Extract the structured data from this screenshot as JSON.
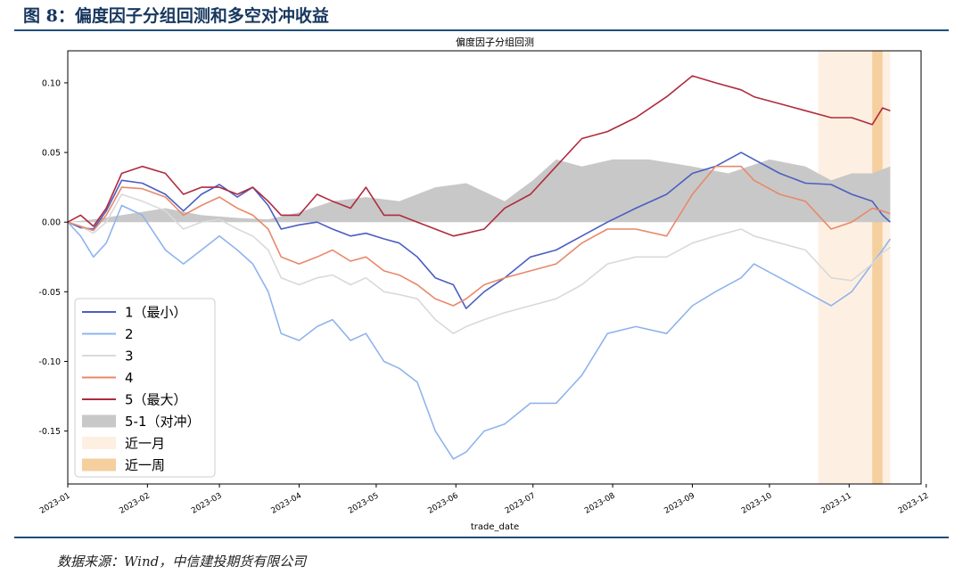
{
  "figure": {
    "title": "图 8：偏度因子分组回测和多空对冲收益",
    "source": "数据来源：Wind，中信建投期货有限公司"
  },
  "chart_data": {
    "type": "line",
    "title": "偏度因子分组回测",
    "xlabel": "trade_date",
    "ylabel": "",
    "ylim": [
      -0.188,
      0.123
    ],
    "xlim": [
      "2023-01-01",
      "2023-11-29"
    ],
    "grid": false,
    "legend_position": "bottom-left",
    "x_ticks": [
      "2023-01",
      "2023-02",
      "2023-03",
      "2023-04",
      "2023-05",
      "2023-06",
      "2023-07",
      "2023-08",
      "2023-09",
      "2023-10",
      "2023-11",
      "2023-12"
    ],
    "y_ticks": [
      0.1,
      0.05,
      0.0,
      -0.05,
      -0.1,
      -0.15
    ],
    "highlights": [
      {
        "name": "近一月",
        "start": "2023-10-20",
        "end": "2023-11-17",
        "color": "#fdf0e2"
      },
      {
        "name": "近一周",
        "start": "2023-11-10",
        "end": "2023-11-14",
        "color": "#f6cf9f"
      }
    ],
    "series": [
      {
        "name": "1（最小）",
        "color": "#4a5fc1",
        "kind": "line",
        "points": [
          [
            "2023-01-01",
            0.0
          ],
          [
            "2023-01-06",
            -0.004
          ],
          [
            "2023-01-11",
            -0.005
          ],
          [
            "2023-01-16",
            0.008
          ],
          [
            "2023-01-22",
            0.03
          ],
          [
            "2023-01-30",
            0.028
          ],
          [
            "2023-02-08",
            0.02
          ],
          [
            "2023-02-15",
            0.008
          ],
          [
            "2023-02-22",
            0.02
          ],
          [
            "2023-03-01",
            0.027
          ],
          [
            "2023-03-08",
            0.018
          ],
          [
            "2023-03-14",
            0.025
          ],
          [
            "2023-03-20",
            0.012
          ],
          [
            "2023-03-25",
            -0.005
          ],
          [
            "2023-04-01",
            -0.002
          ],
          [
            "2023-04-08",
            0.0
          ],
          [
            "2023-04-14",
            -0.005
          ],
          [
            "2023-04-21",
            -0.01
          ],
          [
            "2023-04-27",
            -0.008
          ],
          [
            "2023-05-04",
            -0.012
          ],
          [
            "2023-05-10",
            -0.015
          ],
          [
            "2023-05-17",
            -0.025
          ],
          [
            "2023-05-24",
            -0.04
          ],
          [
            "2023-05-31",
            -0.045
          ],
          [
            "2023-06-05",
            -0.062
          ],
          [
            "2023-06-12",
            -0.05
          ],
          [
            "2023-06-20",
            -0.04
          ],
          [
            "2023-06-30",
            -0.025
          ],
          [
            "2023-07-10",
            -0.02
          ],
          [
            "2023-07-20",
            -0.01
          ],
          [
            "2023-07-30",
            0.0
          ],
          [
            "2023-08-10",
            0.01
          ],
          [
            "2023-08-22",
            0.02
          ],
          [
            "2023-09-01",
            0.035
          ],
          [
            "2023-09-10",
            0.04
          ],
          [
            "2023-09-20",
            0.05
          ],
          [
            "2023-09-25",
            0.045
          ],
          [
            "2023-10-05",
            0.035
          ],
          [
            "2023-10-15",
            0.028
          ],
          [
            "2023-10-25",
            0.027
          ],
          [
            "2023-11-02",
            0.02
          ],
          [
            "2023-11-10",
            0.015
          ],
          [
            "2023-11-14",
            0.005
          ],
          [
            "2023-11-17",
            0.0
          ]
        ]
      },
      {
        "name": "2",
        "color": "#8fb4ec",
        "kind": "line",
        "points": [
          [
            "2023-01-01",
            0.0
          ],
          [
            "2023-01-06",
            -0.01
          ],
          [
            "2023-01-11",
            -0.025
          ],
          [
            "2023-01-16",
            -0.015
          ],
          [
            "2023-01-22",
            0.012
          ],
          [
            "2023-01-30",
            0.005
          ],
          [
            "2023-02-08",
            -0.02
          ],
          [
            "2023-02-15",
            -0.03
          ],
          [
            "2023-02-22",
            -0.02
          ],
          [
            "2023-03-01",
            -0.01
          ],
          [
            "2023-03-08",
            -0.02
          ],
          [
            "2023-03-14",
            -0.03
          ],
          [
            "2023-03-20",
            -0.05
          ],
          [
            "2023-03-25",
            -0.08
          ],
          [
            "2023-04-01",
            -0.085
          ],
          [
            "2023-04-08",
            -0.075
          ],
          [
            "2023-04-14",
            -0.07
          ],
          [
            "2023-04-21",
            -0.085
          ],
          [
            "2023-04-27",
            -0.08
          ],
          [
            "2023-05-04",
            -0.1
          ],
          [
            "2023-05-10",
            -0.105
          ],
          [
            "2023-05-17",
            -0.115
          ],
          [
            "2023-05-24",
            -0.15
          ],
          [
            "2023-05-31",
            -0.17
          ],
          [
            "2023-06-05",
            -0.165
          ],
          [
            "2023-06-12",
            -0.15
          ],
          [
            "2023-06-20",
            -0.145
          ],
          [
            "2023-06-30",
            -0.13
          ],
          [
            "2023-07-10",
            -0.13
          ],
          [
            "2023-07-20",
            -0.11
          ],
          [
            "2023-07-30",
            -0.08
          ],
          [
            "2023-08-10",
            -0.075
          ],
          [
            "2023-08-22",
            -0.08
          ],
          [
            "2023-09-01",
            -0.06
          ],
          [
            "2023-09-10",
            -0.05
          ],
          [
            "2023-09-20",
            -0.04
          ],
          [
            "2023-09-25",
            -0.03
          ],
          [
            "2023-10-05",
            -0.04
          ],
          [
            "2023-10-15",
            -0.05
          ],
          [
            "2023-10-25",
            -0.06
          ],
          [
            "2023-11-02",
            -0.05
          ],
          [
            "2023-11-10",
            -0.03
          ],
          [
            "2023-11-14",
            -0.02
          ],
          [
            "2023-11-17",
            -0.012
          ]
        ]
      },
      {
        "name": "3",
        "color": "#d9d9d9",
        "kind": "line",
        "points": [
          [
            "2023-01-01",
            0.0
          ],
          [
            "2023-01-06",
            -0.003
          ],
          [
            "2023-01-11",
            -0.008
          ],
          [
            "2023-01-16",
            0.0
          ],
          [
            "2023-01-22",
            0.02
          ],
          [
            "2023-01-30",
            0.015
          ],
          [
            "2023-02-08",
            0.008
          ],
          [
            "2023-02-15",
            -0.005
          ],
          [
            "2023-02-22",
            0.0
          ],
          [
            "2023-03-01",
            0.002
          ],
          [
            "2023-03-08",
            -0.005
          ],
          [
            "2023-03-14",
            -0.01
          ],
          [
            "2023-03-20",
            -0.02
          ],
          [
            "2023-03-25",
            -0.04
          ],
          [
            "2023-04-01",
            -0.045
          ],
          [
            "2023-04-08",
            -0.04
          ],
          [
            "2023-04-14",
            -0.038
          ],
          [
            "2023-04-21",
            -0.045
          ],
          [
            "2023-04-27",
            -0.04
          ],
          [
            "2023-05-04",
            -0.05
          ],
          [
            "2023-05-10",
            -0.052
          ],
          [
            "2023-05-17",
            -0.055
          ],
          [
            "2023-05-24",
            -0.07
          ],
          [
            "2023-05-31",
            -0.08
          ],
          [
            "2023-06-05",
            -0.075
          ],
          [
            "2023-06-12",
            -0.07
          ],
          [
            "2023-06-20",
            -0.065
          ],
          [
            "2023-06-30",
            -0.06
          ],
          [
            "2023-07-10",
            -0.055
          ],
          [
            "2023-07-20",
            -0.045
          ],
          [
            "2023-07-30",
            -0.03
          ],
          [
            "2023-08-10",
            -0.025
          ],
          [
            "2023-08-22",
            -0.025
          ],
          [
            "2023-09-01",
            -0.015
          ],
          [
            "2023-09-10",
            -0.01
          ],
          [
            "2023-09-20",
            -0.005
          ],
          [
            "2023-09-25",
            -0.01
          ],
          [
            "2023-10-05",
            -0.015
          ],
          [
            "2023-10-15",
            -0.02
          ],
          [
            "2023-10-25",
            -0.04
          ],
          [
            "2023-11-02",
            -0.042
          ],
          [
            "2023-11-10",
            -0.03
          ],
          [
            "2023-11-14",
            -0.022
          ],
          [
            "2023-11-17",
            -0.018
          ]
        ]
      },
      {
        "name": "4",
        "color": "#e8896a",
        "kind": "line",
        "points": [
          [
            "2023-01-01",
            0.0
          ],
          [
            "2023-01-06",
            -0.003
          ],
          [
            "2023-01-11",
            -0.006
          ],
          [
            "2023-01-16",
            0.005
          ],
          [
            "2023-01-22",
            0.025
          ],
          [
            "2023-01-30",
            0.024
          ],
          [
            "2023-02-08",
            0.018
          ],
          [
            "2023-02-15",
            0.005
          ],
          [
            "2023-02-22",
            0.012
          ],
          [
            "2023-03-01",
            0.018
          ],
          [
            "2023-03-08",
            0.01
          ],
          [
            "2023-03-14",
            0.005
          ],
          [
            "2023-03-20",
            -0.005
          ],
          [
            "2023-03-25",
            -0.025
          ],
          [
            "2023-04-01",
            -0.03
          ],
          [
            "2023-04-08",
            -0.025
          ],
          [
            "2023-04-14",
            -0.02
          ],
          [
            "2023-04-21",
            -0.028
          ],
          [
            "2023-04-27",
            -0.025
          ],
          [
            "2023-05-04",
            -0.035
          ],
          [
            "2023-05-10",
            -0.038
          ],
          [
            "2023-05-17",
            -0.045
          ],
          [
            "2023-05-24",
            -0.055
          ],
          [
            "2023-05-31",
            -0.06
          ],
          [
            "2023-06-05",
            -0.055
          ],
          [
            "2023-06-12",
            -0.045
          ],
          [
            "2023-06-20",
            -0.04
          ],
          [
            "2023-06-30",
            -0.035
          ],
          [
            "2023-07-10",
            -0.03
          ],
          [
            "2023-07-20",
            -0.015
          ],
          [
            "2023-07-30",
            -0.005
          ],
          [
            "2023-08-10",
            -0.005
          ],
          [
            "2023-08-22",
            -0.01
          ],
          [
            "2023-09-01",
            0.02
          ],
          [
            "2023-09-10",
            0.04
          ],
          [
            "2023-09-20",
            0.04
          ],
          [
            "2023-09-25",
            0.03
          ],
          [
            "2023-10-05",
            0.02
          ],
          [
            "2023-10-15",
            0.015
          ],
          [
            "2023-10-25",
            -0.005
          ],
          [
            "2023-11-02",
            0.0
          ],
          [
            "2023-11-10",
            0.01
          ],
          [
            "2023-11-14",
            0.008
          ],
          [
            "2023-11-17",
            0.006
          ]
        ]
      },
      {
        "name": "5（最大）",
        "color": "#b02a3e",
        "kind": "line",
        "points": [
          [
            "2023-01-01",
            0.0
          ],
          [
            "2023-01-06",
            0.005
          ],
          [
            "2023-01-11",
            -0.003
          ],
          [
            "2023-01-16",
            0.01
          ],
          [
            "2023-01-22",
            0.035
          ],
          [
            "2023-01-30",
            0.04
          ],
          [
            "2023-02-08",
            0.035
          ],
          [
            "2023-02-15",
            0.02
          ],
          [
            "2023-02-22",
            0.025
          ],
          [
            "2023-03-01",
            0.025
          ],
          [
            "2023-03-08",
            0.02
          ],
          [
            "2023-03-14",
            0.025
          ],
          [
            "2023-03-20",
            0.015
          ],
          [
            "2023-03-25",
            0.005
          ],
          [
            "2023-04-01",
            0.005
          ],
          [
            "2023-04-08",
            0.02
          ],
          [
            "2023-04-14",
            0.015
          ],
          [
            "2023-04-21",
            0.01
          ],
          [
            "2023-04-27",
            0.025
          ],
          [
            "2023-05-04",
            0.005
          ],
          [
            "2023-05-10",
            0.005
          ],
          [
            "2023-05-17",
            0.0
          ],
          [
            "2023-05-24",
            -0.005
          ],
          [
            "2023-05-31",
            -0.01
          ],
          [
            "2023-06-05",
            -0.008
          ],
          [
            "2023-06-12",
            -0.005
          ],
          [
            "2023-06-20",
            0.01
          ],
          [
            "2023-06-30",
            0.02
          ],
          [
            "2023-07-10",
            0.04
          ],
          [
            "2023-07-20",
            0.06
          ],
          [
            "2023-07-30",
            0.065
          ],
          [
            "2023-08-10",
            0.075
          ],
          [
            "2023-08-22",
            0.09
          ],
          [
            "2023-09-01",
            0.105
          ],
          [
            "2023-09-10",
            0.1
          ],
          [
            "2023-09-20",
            0.095
          ],
          [
            "2023-09-25",
            0.09
          ],
          [
            "2023-10-05",
            0.085
          ],
          [
            "2023-10-15",
            0.08
          ],
          [
            "2023-10-25",
            0.075
          ],
          [
            "2023-11-02",
            0.075
          ],
          [
            "2023-11-10",
            0.07
          ],
          [
            "2023-11-14",
            0.082
          ],
          [
            "2023-11-17",
            0.08
          ]
        ]
      },
      {
        "name": "5-1（对冲）",
        "color": "#c8c8c8",
        "kind": "area",
        "points": [
          [
            "2023-01-01",
            0.0
          ],
          [
            "2023-01-11",
            0.002
          ],
          [
            "2023-01-22",
            0.005
          ],
          [
            "2023-02-08",
            0.01
          ],
          [
            "2023-02-22",
            0.005
          ],
          [
            "2023-03-08",
            0.003
          ],
          [
            "2023-03-20",
            0.002
          ],
          [
            "2023-04-01",
            0.007
          ],
          [
            "2023-04-14",
            0.015
          ],
          [
            "2023-04-27",
            0.018
          ],
          [
            "2023-05-10",
            0.015
          ],
          [
            "2023-05-24",
            0.025
          ],
          [
            "2023-06-05",
            0.028
          ],
          [
            "2023-06-20",
            0.015
          ],
          [
            "2023-07-01",
            0.03
          ],
          [
            "2023-07-10",
            0.045
          ],
          [
            "2023-07-20",
            0.04
          ],
          [
            "2023-08-01",
            0.045
          ],
          [
            "2023-08-15",
            0.045
          ],
          [
            "2023-09-01",
            0.04
          ],
          [
            "2023-09-15",
            0.035
          ],
          [
            "2023-10-01",
            0.045
          ],
          [
            "2023-10-15",
            0.04
          ],
          [
            "2023-10-25",
            0.03
          ],
          [
            "2023-11-02",
            0.035
          ],
          [
            "2023-11-10",
            0.035
          ],
          [
            "2023-11-17",
            0.04
          ]
        ]
      }
    ]
  }
}
